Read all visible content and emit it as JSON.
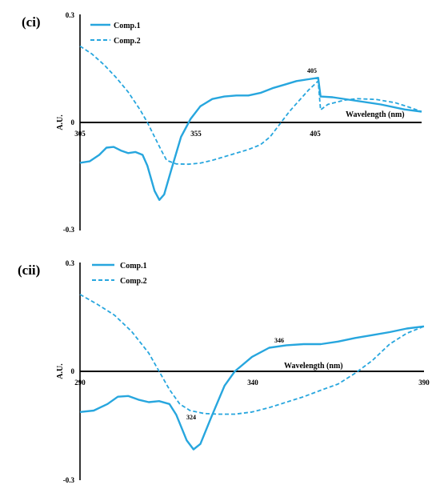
{
  "chart_data": [
    {
      "panel_label": "(ci)",
      "type": "line",
      "xlabel": "Wavelength  (nm)",
      "ylabel": "A.U.",
      "xlim": [
        305,
        447
      ],
      "ylim": [
        -0.3,
        0.3
      ],
      "x_ticks": [
        "305",
        "355",
        "405"
      ],
      "y_ticks": [
        "0.3",
        "0",
        "-0.3"
      ],
      "legend_position": "top-left",
      "annotation": {
        "text": "405",
        "x": 404,
        "y": 0.12
      },
      "series": [
        {
          "name": "Comp.1",
          "style": "solid",
          "points": [
            [
              305,
              -0.112
            ],
            [
              309,
              -0.108
            ],
            [
              313,
              -0.09
            ],
            [
              316,
              -0.07
            ],
            [
              319,
              -0.068
            ],
            [
              322,
              -0.078
            ],
            [
              325,
              -0.085
            ],
            [
              328,
              -0.082
            ],
            [
              331,
              -0.09
            ],
            [
              333,
              -0.12
            ],
            [
              336,
              -0.19
            ],
            [
              338,
              -0.215
            ],
            [
              340,
              -0.2
            ],
            [
              343,
              -0.13
            ],
            [
              347,
              -0.04
            ],
            [
              351,
              0.01
            ],
            [
              355,
              0.045
            ],
            [
              360,
              0.065
            ],
            [
              365,
              0.072
            ],
            [
              370,
              0.075
            ],
            [
              375,
              0.075
            ],
            [
              380,
              0.082
            ],
            [
              385,
              0.095
            ],
            [
              390,
              0.105
            ],
            [
              395,
              0.115
            ],
            [
              400,
              0.12
            ],
            [
              404,
              0.124
            ],
            [
              405,
              0.072
            ],
            [
              410,
              0.07
            ],
            [
              420,
              0.06
            ],
            [
              430,
              0.05
            ],
            [
              440,
              0.036
            ],
            [
              447,
              0.03
            ]
          ]
        },
        {
          "name": "Comp.2",
          "style": "dashed",
          "points": [
            [
              305,
              0.212
            ],
            [
              310,
              0.19
            ],
            [
              315,
              0.16
            ],
            [
              320,
              0.125
            ],
            [
              325,
              0.085
            ],
            [
              330,
              0.035
            ],
            [
              333,
              0
            ],
            [
              336,
              -0.04
            ],
            [
              339,
              -0.08
            ],
            [
              341,
              -0.105
            ],
            [
              345,
              -0.115
            ],
            [
              350,
              -0.116
            ],
            [
              355,
              -0.113
            ],
            [
              360,
              -0.105
            ],
            [
              365,
              -0.095
            ],
            [
              370,
              -0.085
            ],
            [
              375,
              -0.075
            ],
            [
              380,
              -0.062
            ],
            [
              384,
              -0.04
            ],
            [
              388,
              -0.005
            ],
            [
              392,
              0.03
            ],
            [
              396,
              0.06
            ],
            [
              400,
              0.09
            ],
            [
              404,
              0.115
            ],
            [
              405,
              0.035
            ],
            [
              408,
              0.05
            ],
            [
              415,
              0.062
            ],
            [
              420,
              0.066
            ],
            [
              428,
              0.064
            ],
            [
              436,
              0.055
            ],
            [
              442,
              0.042
            ],
            [
              447,
              0.03
            ]
          ]
        }
      ]
    },
    {
      "panel_label": "(cii)",
      "type": "line",
      "xlabel": "Wavelength  (nm)",
      "ylabel": "A.U.",
      "xlim": [
        290,
        390
      ],
      "ylim": [
        -0.3,
        0.3
      ],
      "x_ticks": [
        "290",
        "340",
        "390"
      ],
      "y_ticks": [
        "0.3",
        "0",
        "-0.3"
      ],
      "legend_position": "top-left",
      "annotations": [
        {
          "text": "346",
          "x": 346,
          "y": 0.07
        },
        {
          "text": "324",
          "x": 324,
          "y": -0.118
        }
      ],
      "series": [
        {
          "name": "Comp.1",
          "style": "solid",
          "points": [
            [
              290,
              -0.112
            ],
            [
              294,
              -0.108
            ],
            [
              298,
              -0.09
            ],
            [
              301,
              -0.07
            ],
            [
              304,
              -0.068
            ],
            [
              307,
              -0.078
            ],
            [
              310,
              -0.085
            ],
            [
              313,
              -0.082
            ],
            [
              316,
              -0.09
            ],
            [
              318,
              -0.12
            ],
            [
              321,
              -0.19
            ],
            [
              323,
              -0.215
            ],
            [
              325,
              -0.2
            ],
            [
              328,
              -0.13
            ],
            [
              332,
              -0.04
            ],
            [
              335,
              0
            ],
            [
              340,
              0.04
            ],
            [
              345,
              0.065
            ],
            [
              350,
              0.072
            ],
            [
              355,
              0.075
            ],
            [
              360,
              0.075
            ],
            [
              365,
              0.082
            ],
            [
              370,
              0.092
            ],
            [
              375,
              0.1
            ],
            [
              380,
              0.108
            ],
            [
              385,
              0.118
            ],
            [
              390,
              0.124
            ]
          ]
        },
        {
          "name": "Comp.2",
          "style": "dashed",
          "points": [
            [
              290,
              0.212
            ],
            [
              295,
              0.185
            ],
            [
              300,
              0.155
            ],
            [
              305,
              0.11
            ],
            [
              310,
              0.05
            ],
            [
              313,
              0
            ],
            [
              316,
              -0.05
            ],
            [
              319,
              -0.09
            ],
            [
              322,
              -0.108
            ],
            [
              326,
              -0.116
            ],
            [
              330,
              -0.118
            ],
            [
              335,
              -0.118
            ],
            [
              340,
              -0.112
            ],
            [
              345,
              -0.1
            ],
            [
              350,
              -0.085
            ],
            [
              355,
              -0.07
            ],
            [
              360,
              -0.052
            ],
            [
              365,
              -0.035
            ],
            [
              370,
              -0.005
            ],
            [
              375,
              0.03
            ],
            [
              380,
              0.075
            ],
            [
              385,
              0.105
            ],
            [
              390,
              0.124
            ]
          ]
        }
      ]
    }
  ]
}
